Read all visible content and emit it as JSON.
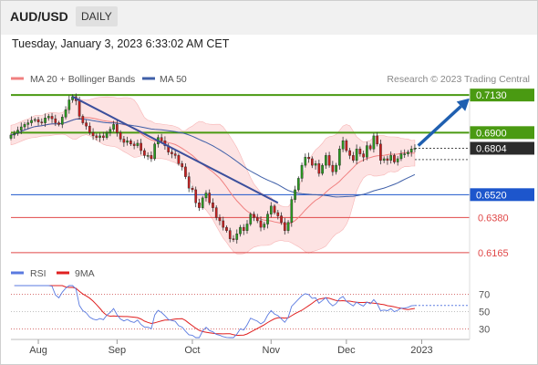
{
  "header": {
    "symbol": "AUD/USD",
    "timeframe": "DAILY"
  },
  "datetime": "Tuesday, January 3, 2023 6:33:02 AM CET",
  "colors": {
    "bollinger_fill": "#fde3e3",
    "ma20": "#f08080",
    "ma50": "#3f5fa8",
    "resistance": "#4a9a12",
    "support_blue": "#1d56cc",
    "support_red": "#e04848",
    "trend_line": "#3b4f9c",
    "arrow": "#1f5fb0",
    "candle_up": "#2a9a20",
    "candle_down": "#c82020",
    "rsi": "#5a7ae0",
    "rsi_ma": "#e02020"
  },
  "chart_data": [
    {
      "type": "line",
      "title": "",
      "legend": [
        {
          "label": "MA 20 + Bollinger Bands",
          "color": "#f08080"
        },
        {
          "label": "MA 50",
          "color": "#3f5fa8"
        }
      ],
      "credit": "Research © 2023 Trading Central",
      "x_ticks": [
        "Aug",
        "Sep",
        "Oct",
        "Nov",
        "Dec",
        "2023"
      ],
      "ylim": [
        0.6125,
        0.717
      ],
      "levels": [
        {
          "label": "0.7130",
          "value": 0.713,
          "kind": "resistance"
        },
        {
          "label": "0.6900",
          "value": 0.69,
          "kind": "resistance"
        },
        {
          "label": "0.6804",
          "value": 0.6804,
          "kind": "last"
        },
        {
          "label": "0.6520",
          "value": 0.652,
          "kind": "support_blue"
        },
        {
          "label": "0.6380",
          "value": 0.638,
          "kind": "support_red"
        },
        {
          "label": "0.6165",
          "value": 0.6165,
          "kind": "support_red"
        }
      ],
      "series": [
        {
          "name": "AUD/USD",
          "close": [
            0.6885,
            0.6895,
            0.6915,
            0.6935,
            0.695,
            0.696,
            0.6975,
            0.698,
            0.6965,
            0.696,
            0.699,
            0.7,
            0.6985,
            0.696,
            0.695,
            0.6995,
            0.704,
            0.71,
            0.712,
            0.7095,
            0.7,
            0.696,
            0.694,
            0.69,
            0.688,
            0.687,
            0.688,
            0.687,
            0.69,
            0.692,
            0.695,
            0.69,
            0.686,
            0.684,
            0.685,
            0.683,
            0.682,
            0.6835,
            0.679,
            0.676,
            0.676,
            0.674,
            0.683,
            0.687,
            0.685,
            0.682,
            0.678,
            0.677,
            0.676,
            0.671,
            0.669,
            0.663,
            0.656,
            0.655,
            0.647,
            0.644,
            0.65,
            0.653,
            0.647,
            0.644,
            0.638,
            0.636,
            0.632,
            0.63,
            0.625,
            0.6245,
            0.628,
            0.632,
            0.63,
            0.634,
            0.64,
            0.638,
            0.636,
            0.632,
            0.634,
            0.64,
            0.645,
            0.641,
            0.639,
            0.635,
            0.63,
            0.635,
            0.649,
            0.655,
            0.662,
            0.67,
            0.675,
            0.674,
            0.67,
            0.671,
            0.665,
            0.67,
            0.676,
            0.67,
            0.666,
            0.67,
            0.68,
            0.685,
            0.679,
            0.676,
            0.673,
            0.68,
            0.677,
            0.675,
            0.682,
            0.68,
            0.688,
            0.683,
            0.673,
            0.674,
            0.673,
            0.676,
            0.672,
            0.674,
            0.677,
            0.677,
            0.678,
            0.68,
            0.6804
          ]
        },
        {
          "name": "MA 20"
        },
        {
          "name": "MA 50"
        }
      ],
      "annotations": [
        {
          "type": "trend_line",
          "from": {
            "index": 18,
            "value": 0.712
          },
          "to": {
            "index": 78,
            "value": 0.647
          }
        },
        {
          "type": "forecast_arrow",
          "from": {
            "index": 119,
            "value": 0.682
          },
          "to": {
            "index": 134,
            "value": 0.711
          }
        }
      ]
    },
    {
      "type": "line",
      "title": "",
      "legend": [
        {
          "label": "RSI",
          "color": "#5a7ae0"
        },
        {
          "label": "9MA",
          "color": "#e02020"
        }
      ],
      "ylim": [
        20,
        80
      ],
      "y_ticks": [
        "70",
        "50",
        "30"
      ],
      "series": [
        {
          "name": "RSI"
        },
        {
          "name": "9MA"
        }
      ]
    }
  ]
}
